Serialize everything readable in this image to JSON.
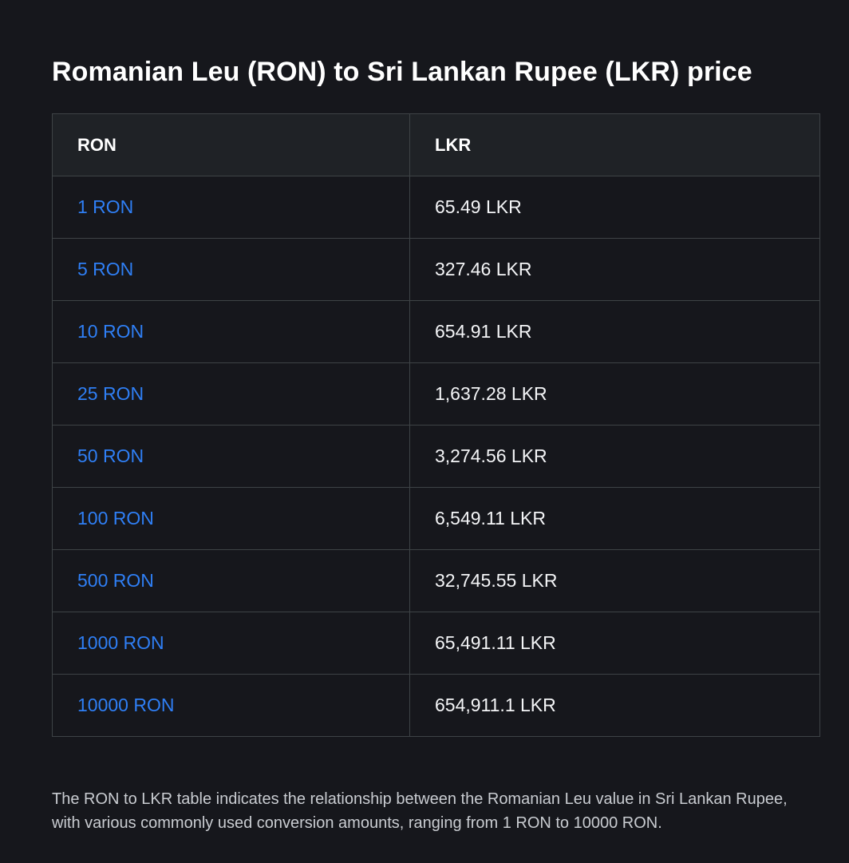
{
  "title": "Romanian Leu (RON) to Sri Lankan Rupee (LKR) price",
  "table": {
    "headers": [
      "RON",
      "LKR"
    ],
    "rows": [
      {
        "ron": "1 RON",
        "lkr": "65.49 LKR"
      },
      {
        "ron": "5 RON",
        "lkr": "327.46 LKR"
      },
      {
        "ron": "10 RON",
        "lkr": "654.91 LKR"
      },
      {
        "ron": "25 RON",
        "lkr": "1,637.28 LKR"
      },
      {
        "ron": "50 RON",
        "lkr": "3,274.56 LKR"
      },
      {
        "ron": "100 RON",
        "lkr": "6,549.11 LKR"
      },
      {
        "ron": "500 RON",
        "lkr": "32,745.55 LKR"
      },
      {
        "ron": "1000 RON",
        "lkr": "65,491.11 LKR"
      },
      {
        "ron": "10000 RON",
        "lkr": "654,911.1 LKR"
      }
    ]
  },
  "footnote": "The RON to LKR table indicates the relationship between the Romanian Leu value in Sri Lankan Rupee, with various commonly used conversion amounts, ranging from 1 RON to 10000 RON.",
  "colors": {
    "background": "#16171c",
    "header_background": "#1f2226",
    "border": "#3e4346",
    "link": "#2f7ff5",
    "text": "#f4f5f7"
  }
}
